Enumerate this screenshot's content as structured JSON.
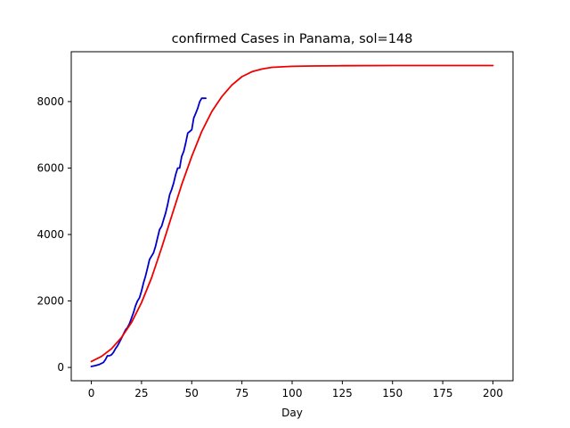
{
  "chart_data": {
    "type": "line",
    "title": "confirmed Cases in Panama, sol=148",
    "xlabel": "Day",
    "ylabel": "",
    "xlim": [
      -10,
      210
    ],
    "ylim": [
      -400,
      9500
    ],
    "grid": false,
    "x_ticks": [
      0,
      25,
      50,
      75,
      100,
      125,
      150,
      175,
      200
    ],
    "y_ticks": [
      0,
      2000,
      4000,
      6000,
      8000
    ],
    "series": [
      {
        "color": "#0000cc",
        "x": [
          0,
          2,
          4,
          6,
          7,
          8,
          9,
          10,
          11,
          12,
          13,
          14,
          15,
          16,
          17,
          18,
          19,
          20,
          21,
          22,
          23,
          24,
          25,
          26,
          27,
          28,
          29,
          30,
          31,
          32,
          33,
          34,
          35,
          36,
          37,
          38,
          39,
          40,
          41,
          42,
          43,
          44,
          45,
          46,
          47,
          48,
          49,
          50,
          51,
          52,
          53,
          54,
          55,
          56,
          57
        ],
        "y": [
          30,
          55,
          90,
          150,
          230,
          350,
          350,
          380,
          450,
          560,
          650,
          760,
          880,
          1000,
          1130,
          1200,
          1320,
          1480,
          1650,
          1850,
          2000,
          2100,
          2300,
          2550,
          2750,
          3000,
          3250,
          3350,
          3450,
          3650,
          3900,
          4150,
          4250,
          4450,
          4650,
          4900,
          5200,
          5350,
          5550,
          5800,
          6000,
          6000,
          6350,
          6500,
          6750,
          7050,
          7100,
          7150,
          7500,
          7650,
          7800,
          8000,
          8100,
          8100,
          8100
        ]
      },
      {
        "color": "#ee0000",
        "x": [
          0,
          5,
          10,
          15,
          20,
          25,
          30,
          35,
          40,
          45,
          50,
          55,
          60,
          65,
          70,
          75,
          80,
          85,
          90,
          100,
          110,
          125,
          150,
          175,
          200
        ],
        "y": [
          180,
          330,
          560,
          900,
          1350,
          1950,
          2700,
          3600,
          4550,
          5500,
          6350,
          7100,
          7700,
          8150,
          8500,
          8750,
          8900,
          8980,
          9030,
          9060,
          9070,
          9080,
          9085,
          9085,
          9085
        ]
      }
    ]
  }
}
